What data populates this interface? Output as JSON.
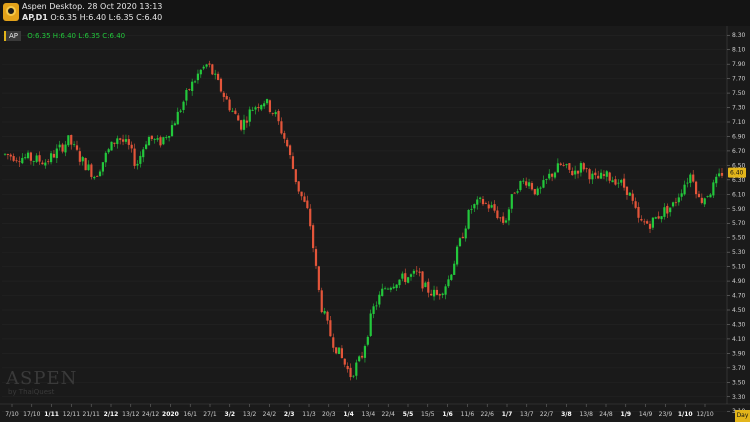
{
  "header": {
    "title": "Aspen Desktop. 28 Oct 2020 13:13",
    "symbol": "AP,D1",
    "ohlc": "O:6.35 H:6.40 L:6.35 C:6.40"
  },
  "legend": {
    "badge": "AP",
    "values": "O:6.35 H:6.40 L:6.35 C:6.40"
  },
  "watermark": {
    "main": "ASPEN",
    "sub": "by ThaiQuest"
  },
  "day_button": "Day",
  "colors": {
    "up": "#23c83c",
    "down": "#e3553a",
    "background": "#1a1a1a",
    "accent": "#e3b51a"
  },
  "chart_data": {
    "type": "candlestick",
    "symbol": "AP",
    "timeframe": "D1",
    "last_price": "6.40",
    "ylim": [
      3.2,
      8.4
    ],
    "y_ticks": [
      "8.30",
      "8.10",
      "7.90",
      "7.70",
      "7.50",
      "7.30",
      "7.10",
      "6.90",
      "6.70",
      "6.50",
      "6.30",
      "6.10",
      "5.90",
      "5.70",
      "5.50",
      "5.30",
      "5.10",
      "4.90",
      "4.70",
      "4.50",
      "4.30",
      "4.10",
      "3.90",
      "3.70",
      "3.50",
      "3.30",
      "3.10"
    ],
    "x_ticks": [
      {
        "label": "7/10",
        "bold": false
      },
      {
        "label": "17/10",
        "bold": false
      },
      {
        "label": "1/11",
        "bold": true
      },
      {
        "label": "12/11",
        "bold": false
      },
      {
        "label": "21/11",
        "bold": false
      },
      {
        "label": "2/12",
        "bold": true
      },
      {
        "label": "13/12",
        "bold": false
      },
      {
        "label": "24/12",
        "bold": false
      },
      {
        "label": "2020",
        "bold": true
      },
      {
        "label": "16/1",
        "bold": false
      },
      {
        "label": "27/1",
        "bold": false
      },
      {
        "label": "3/2",
        "bold": true
      },
      {
        "label": "13/2",
        "bold": false
      },
      {
        "label": "24/2",
        "bold": false
      },
      {
        "label": "2/3",
        "bold": true
      },
      {
        "label": "11/3",
        "bold": false
      },
      {
        "label": "20/3",
        "bold": false
      },
      {
        "label": "1/4",
        "bold": true
      },
      {
        "label": "13/4",
        "bold": false
      },
      {
        "label": "22/4",
        "bold": false
      },
      {
        "label": "5/5",
        "bold": true
      },
      {
        "label": "15/5",
        "bold": false
      },
      {
        "label": "1/6",
        "bold": true
      },
      {
        "label": "11/6",
        "bold": false
      },
      {
        "label": "22/6",
        "bold": false
      },
      {
        "label": "1/7",
        "bold": true
      },
      {
        "label": "13/7",
        "bold": false
      },
      {
        "label": "22/7",
        "bold": false
      },
      {
        "label": "3/8",
        "bold": true
      },
      {
        "label": "13/8",
        "bold": false
      },
      {
        "label": "24/8",
        "bold": false
      },
      {
        "label": "1/9",
        "bold": true
      },
      {
        "label": "14/9",
        "bold": false
      },
      {
        "label": "23/9",
        "bold": false
      },
      {
        "label": "1/10",
        "bold": true
      },
      {
        "label": "12/10",
        "bold": false
      }
    ],
    "price_path": [
      [
        0,
        6.65
      ],
      [
        6,
        6.6
      ],
      [
        11,
        6.55
      ],
      [
        14,
        6.7
      ],
      [
        17,
        6.85
      ],
      [
        20,
        6.6
      ],
      [
        24,
        6.35
      ],
      [
        27,
        6.65
      ],
      [
        30,
        6.9
      ],
      [
        33,
        6.75
      ],
      [
        35,
        6.5
      ],
      [
        38,
        6.9
      ],
      [
        41,
        6.8
      ],
      [
        44,
        7.0
      ],
      [
        46,
        7.2
      ],
      [
        49,
        7.55
      ],
      [
        52,
        7.8
      ],
      [
        54,
        7.9
      ],
      [
        57,
        7.6
      ],
      [
        60,
        7.3
      ],
      [
        63,
        7.05
      ],
      [
        66,
        7.3
      ],
      [
        69,
        7.4
      ],
      [
        72,
        7.2
      ],
      [
        75,
        6.8
      ],
      [
        78,
        6.2
      ],
      [
        81,
        5.8
      ],
      [
        84,
        4.6
      ],
      [
        87,
        4.1
      ],
      [
        90,
        3.8
      ],
      [
        92,
        3.6
      ],
      [
        95,
        3.85
      ],
      [
        98,
        4.5
      ],
      [
        101,
        4.8
      ],
      [
        104,
        4.9
      ],
      [
        107,
        4.95
      ],
      [
        110,
        5.0
      ],
      [
        112,
        4.8
      ],
      [
        115,
        4.7
      ],
      [
        118,
        4.9
      ],
      [
        121,
        5.4
      ],
      [
        124,
        5.9
      ],
      [
        127,
        6.0
      ],
      [
        130,
        5.9
      ],
      [
        133,
        5.7
      ],
      [
        136,
        6.2
      ],
      [
        139,
        6.3
      ],
      [
        142,
        6.1
      ],
      [
        145,
        6.35
      ],
      [
        148,
        6.5
      ],
      [
        151,
        6.4
      ],
      [
        154,
        6.5
      ],
      [
        157,
        6.3
      ],
      [
        160,
        6.35
      ],
      [
        163,
        6.3
      ],
      [
        166,
        6.15
      ],
      [
        169,
        5.7
      ],
      [
        172,
        5.7
      ],
      [
        175,
        5.85
      ],
      [
        178,
        5.95
      ],
      [
        181,
        6.25
      ],
      [
        183,
        6.4
      ],
      [
        185,
        6.0
      ],
      [
        188,
        6.15
      ],
      [
        191,
        6.4
      ]
    ]
  }
}
